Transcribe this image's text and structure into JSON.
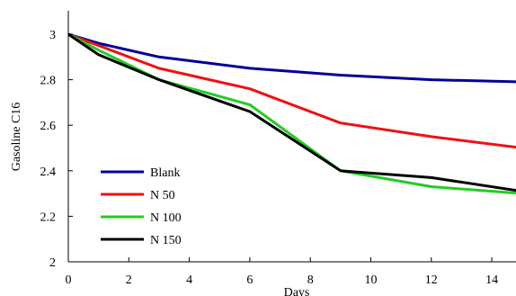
{
  "chart_data": {
    "type": "line",
    "title": "",
    "xlabel": "Days",
    "ylabel": "Gasoline C16",
    "xlim": [
      0,
      14.8
    ],
    "ylim": [
      2,
      3.1
    ],
    "x_ticks": [
      0,
      2,
      4,
      6,
      8,
      10,
      12,
      14
    ],
    "y_ticks": [
      2,
      2.2,
      2.4,
      2.6,
      2.8,
      3
    ],
    "x_tick_labels": [
      "0",
      "2",
      "4",
      "6",
      "8",
      "10",
      "12",
      "14"
    ],
    "y_tick_labels": [
      "2",
      "2.2",
      "2.4",
      "2.6",
      "2.8",
      "3"
    ],
    "grid": false,
    "legend_position": "bottom-left",
    "series": [
      {
        "name": "Blank",
        "color": "#000099",
        "x": [
          0,
          1,
          3,
          6,
          9,
          12,
          15
        ],
        "y": [
          3.0,
          2.96,
          2.9,
          2.85,
          2.82,
          2.8,
          2.79
        ]
      },
      {
        "name": "N 50",
        "color": "#ee1111",
        "x": [
          0,
          1,
          3,
          6,
          9,
          12,
          15
        ],
        "y": [
          3.0,
          2.95,
          2.85,
          2.76,
          2.61,
          2.55,
          2.5
        ]
      },
      {
        "name": "N 100",
        "color": "#22cc22",
        "x": [
          0,
          1,
          3,
          6,
          9,
          12,
          15
        ],
        "y": [
          3.0,
          2.93,
          2.8,
          2.69,
          2.4,
          2.33,
          2.3
        ]
      },
      {
        "name": "N 150",
        "color": "#000000",
        "x": [
          0,
          1,
          3,
          6,
          9,
          12,
          15
        ],
        "y": [
          3.0,
          2.91,
          2.8,
          2.66,
          2.4,
          2.37,
          2.31
        ]
      }
    ]
  }
}
